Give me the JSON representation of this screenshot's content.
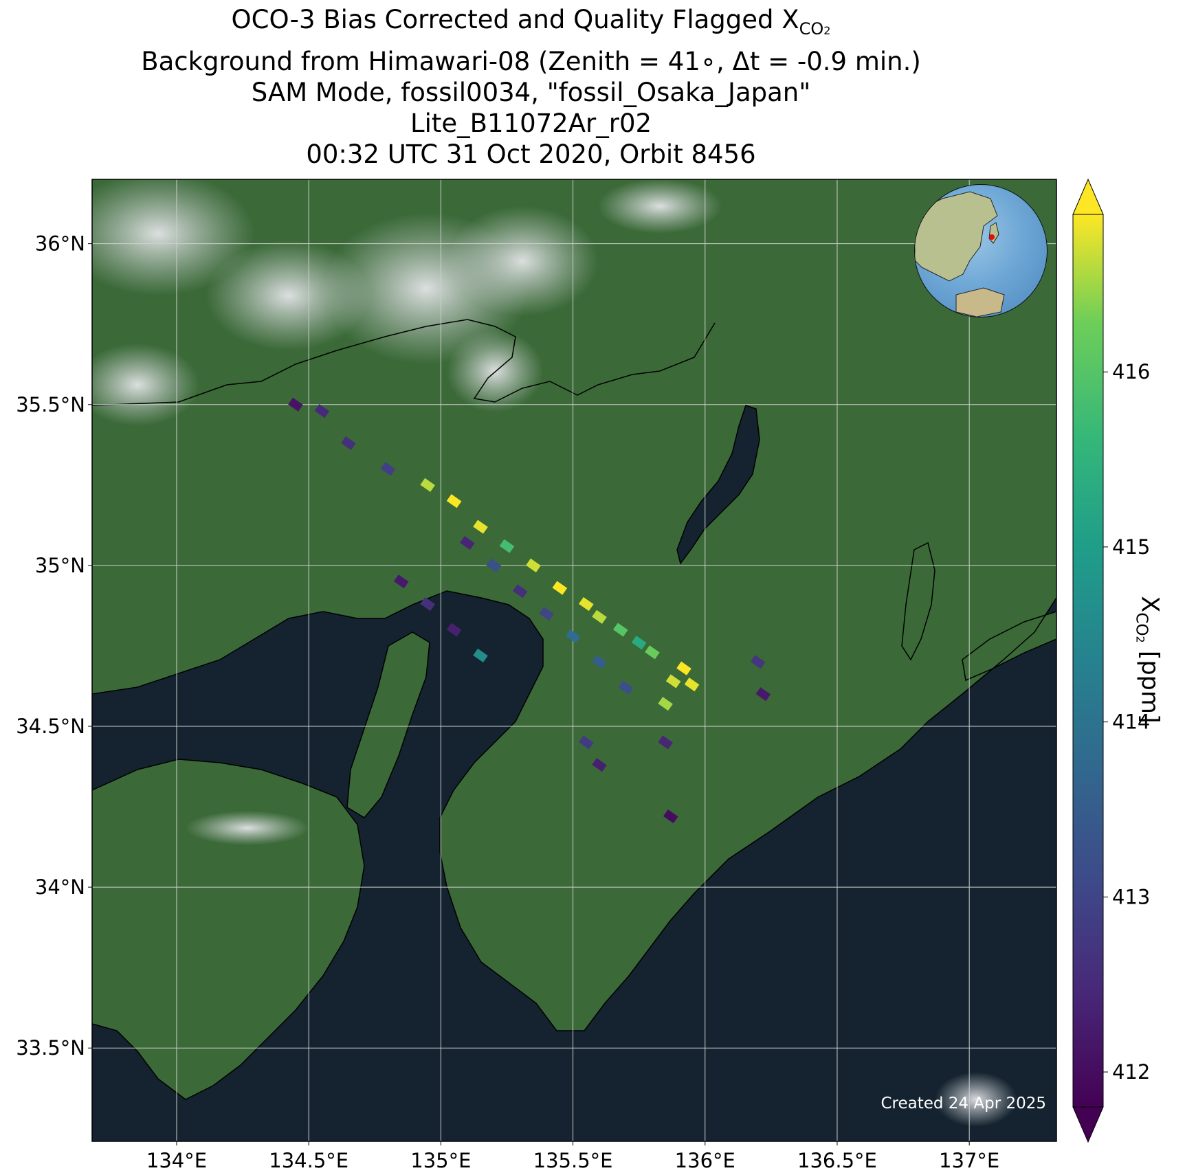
{
  "title": {
    "line1_prefix": "OCO-3 Bias Corrected and Quality Flagged X",
    "line1_sub": "CO",
    "line1_sub2": "2",
    "line2": "Background from Himawari-08 (Zenith = 41∘, Δt = -0.9 min.)",
    "line3": "SAM Mode, fossil0034, \"fossil_Osaka_Japan\"",
    "line4": "Lite_B11072Ar_r02",
    "line5": "00:32 UTC 31 Oct 2020, Orbit 8456"
  },
  "map": {
    "lon_range": [
      133.68,
      137.33
    ],
    "lat_range": [
      33.21,
      36.2
    ],
    "lon_ticks": [
      {
        "value": 134.0,
        "label": "134°E"
      },
      {
        "value": 134.5,
        "label": "134.5°E"
      },
      {
        "value": 135.0,
        "label": "135°E"
      },
      {
        "value": 135.5,
        "label": "135.5°E"
      },
      {
        "value": 136.0,
        "label": "136°E"
      },
      {
        "value": 136.5,
        "label": "136.5°E"
      },
      {
        "value": 137.0,
        "label": "137°E"
      }
    ],
    "lat_ticks": [
      {
        "value": 33.5,
        "label": "33.5°N"
      },
      {
        "value": 34.0,
        "label": "34°N"
      },
      {
        "value": 34.5,
        "label": "34.5°N"
      },
      {
        "value": 35.0,
        "label": "35°N"
      },
      {
        "value": 35.5,
        "label": "35.5°N"
      },
      {
        "value": 36.0,
        "label": "36°N"
      }
    ],
    "grid": true,
    "target_marker": {
      "lon": 135.5,
      "lat": 34.69,
      "color": "#e01010"
    }
  },
  "colorbar": {
    "label_prefix": "X",
    "label_sub": "CO",
    "label_sub2": "2",
    "label_suffix": " [ppm]",
    "range": [
      411.8,
      416.9
    ],
    "ticks": [
      412,
      413,
      414,
      415,
      416
    ],
    "extend": "both",
    "colormap": "viridis"
  },
  "created_label": "Created 24 Apr 2025",
  "colors": {
    "land": "#3b6a38",
    "water": "#14232f",
    "cloud": "#d8dadc",
    "coastline": "#000000",
    "gridline": "#d0d0d0"
  },
  "soundings": [
    {
      "lon": 135.92,
      "lat": 34.68,
      "xco2": 416.9
    },
    {
      "lon": 135.95,
      "lat": 34.63,
      "xco2": 416.8
    },
    {
      "lon": 135.88,
      "lat": 34.64,
      "xco2": 416.7
    },
    {
      "lon": 135.85,
      "lat": 34.57,
      "xco2": 416.5
    },
    {
      "lon": 135.8,
      "lat": 34.73,
      "xco2": 416.2
    },
    {
      "lon": 135.75,
      "lat": 34.76,
      "xco2": 415.3
    },
    {
      "lon": 135.68,
      "lat": 34.8,
      "xco2": 416.0
    },
    {
      "lon": 135.6,
      "lat": 34.84,
      "xco2": 416.6
    },
    {
      "lon": 135.55,
      "lat": 34.88,
      "xco2": 416.8
    },
    {
      "lon": 135.45,
      "lat": 34.93,
      "xco2": 416.9
    },
    {
      "lon": 135.35,
      "lat": 35.0,
      "xco2": 416.7
    },
    {
      "lon": 135.25,
      "lat": 35.06,
      "xco2": 415.8
    },
    {
      "lon": 135.15,
      "lat": 35.12,
      "xco2": 416.8
    },
    {
      "lon": 135.05,
      "lat": 35.2,
      "xco2": 416.9
    },
    {
      "lon": 134.95,
      "lat": 35.25,
      "xco2": 416.6
    },
    {
      "lon": 135.2,
      "lat": 35.0,
      "xco2": 413.2
    },
    {
      "lon": 135.3,
      "lat": 34.92,
      "xco2": 412.6
    },
    {
      "lon": 135.4,
      "lat": 34.85,
      "xco2": 413.0
    },
    {
      "lon": 135.5,
      "lat": 34.78,
      "xco2": 413.8
    },
    {
      "lon": 135.6,
      "lat": 34.7,
      "xco2": 413.5
    },
    {
      "lon": 135.7,
      "lat": 34.62,
      "xco2": 413.2
    },
    {
      "lon": 135.1,
      "lat": 35.07,
      "xco2": 412.4
    },
    {
      "lon": 134.85,
      "lat": 34.95,
      "xco2": 412.2
    },
    {
      "lon": 134.95,
      "lat": 34.88,
      "xco2": 412.6
    },
    {
      "lon": 135.05,
      "lat": 34.8,
      "xco2": 412.3
    },
    {
      "lon": 135.15,
      "lat": 34.72,
      "xco2": 414.6
    },
    {
      "lon": 135.55,
      "lat": 34.45,
      "xco2": 412.8
    },
    {
      "lon": 135.6,
      "lat": 34.38,
      "xco2": 412.3
    },
    {
      "lon": 135.85,
      "lat": 34.45,
      "xco2": 412.4
    },
    {
      "lon": 135.87,
      "lat": 34.22,
      "xco2": 412.0
    },
    {
      "lon": 134.55,
      "lat": 35.48,
      "xco2": 412.5
    },
    {
      "lon": 134.45,
      "lat": 35.5,
      "xco2": 412.1
    },
    {
      "lon": 134.65,
      "lat": 35.38,
      "xco2": 412.6
    },
    {
      "lon": 134.8,
      "lat": 35.3,
      "xco2": 412.9
    },
    {
      "lon": 136.22,
      "lat": 34.6,
      "xco2": 412.2
    },
    {
      "lon": 136.2,
      "lat": 34.7,
      "xco2": 412.7
    }
  ]
}
